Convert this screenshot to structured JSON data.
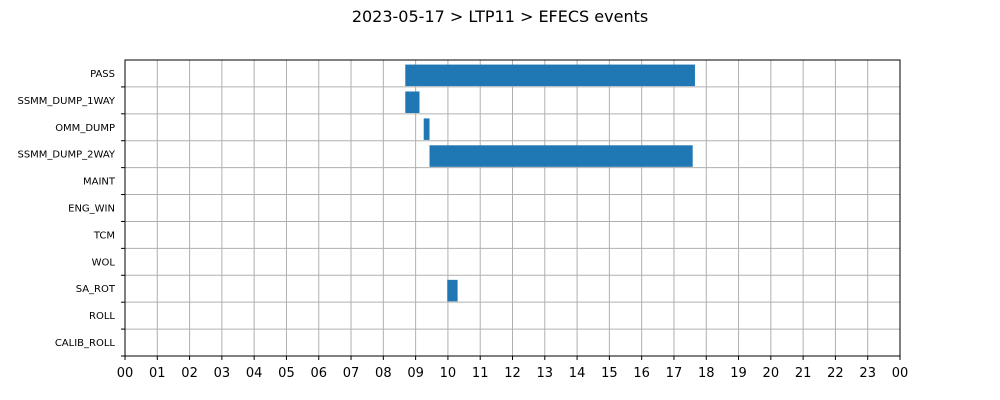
{
  "chart_data": {
    "type": "gantt",
    "title": "2023-05-17 > LTP11 > EFECS events",
    "x_tick_labels": [
      "00",
      "01",
      "02",
      "03",
      "04",
      "05",
      "06",
      "07",
      "08",
      "09",
      "10",
      "11",
      "12",
      "13",
      "14",
      "15",
      "16",
      "17",
      "18",
      "19",
      "20",
      "21",
      "22",
      "23",
      "00"
    ],
    "xlim_hours": [
      0,
      24
    ],
    "categories": [
      "PASS",
      "SSMM_DUMP_1WAY",
      "OMM_DUMP",
      "SSMM_DUMP_2WAY",
      "MAINT",
      "ENG_WIN",
      "TCM",
      "WOL",
      "SA_ROT",
      "ROLL",
      "CALIB_ROLL"
    ],
    "events": [
      {
        "category": "PASS",
        "start_hour": 8.68,
        "end_hour": 17.65
      },
      {
        "category": "SSMM_DUMP_1WAY",
        "start_hour": 8.68,
        "end_hour": 9.12
      },
      {
        "category": "OMM_DUMP",
        "start_hour": 9.25,
        "end_hour": 9.43
      },
      {
        "category": "SSMM_DUMP_2WAY",
        "start_hour": 9.43,
        "end_hour": 17.58
      },
      {
        "category": "SA_ROT",
        "start_hour": 9.98,
        "end_hour": 10.3
      }
    ],
    "bar_color": "#1f77b4",
    "grid": true
  }
}
